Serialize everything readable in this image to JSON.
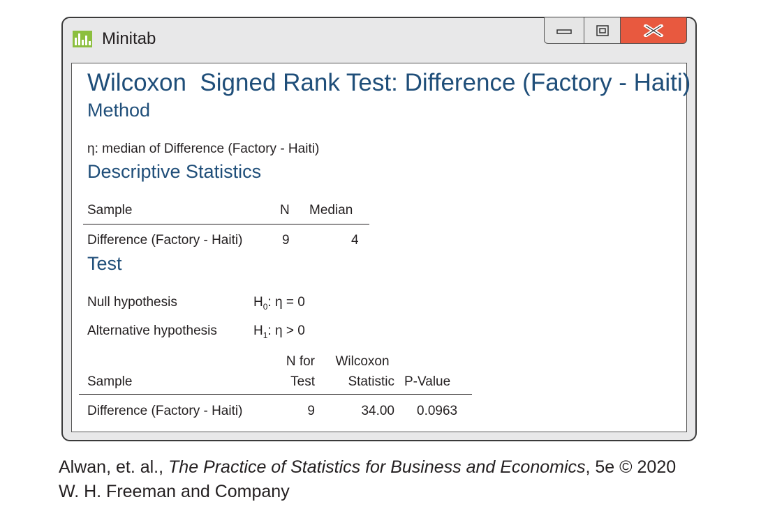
{
  "window": {
    "title": "Minitab"
  },
  "header": {
    "title": "Wilcoxon  Signed Rank Test: Difference (Factory - Haiti)"
  },
  "method": {
    "heading": "Method",
    "eta_definition": "η: median of Difference (Factory - Haiti)"
  },
  "descriptive": {
    "heading": "Descriptive Statistics",
    "columns": [
      "Sample",
      "N",
      "Median"
    ],
    "rows": [
      {
        "sample": "Difference (Factory - Haiti)",
        "n": "9",
        "median": "4"
      }
    ]
  },
  "test": {
    "heading": "Test",
    "null_label": "Null hypothesis",
    "null_h": "H",
    "null_sub": "0",
    "null_value": ": η = 0",
    "alt_label": "Alternative hypothesis",
    "alt_h": "H",
    "alt_sub": "1",
    "alt_value": ": η > 0",
    "columns": {
      "sample": "Sample",
      "n_top": "N for",
      "n_bottom": "Test",
      "w_top": "Wilcoxon",
      "w_bottom": "Statistic",
      "p": "P-Value"
    },
    "rows": [
      {
        "sample": "Difference (Factory - Haiti)",
        "n": "9",
        "statistic": "34.00",
        "p_value": "0.0963"
      }
    ]
  },
  "citation": {
    "prefix": "Alwan, et. al., ",
    "book": "The Practice of Statistics for Business and Economics",
    "suffix": ", 5e © 2020",
    "line2": "W. H. Freeman and Company"
  },
  "colors": {
    "heading": "#1f4e79",
    "close_button": "#e8593f",
    "window_frame": "#e8e8e9"
  },
  "icons": [
    "minitab-logo-icon",
    "minimize-icon",
    "maximize-icon",
    "close-icon"
  ]
}
